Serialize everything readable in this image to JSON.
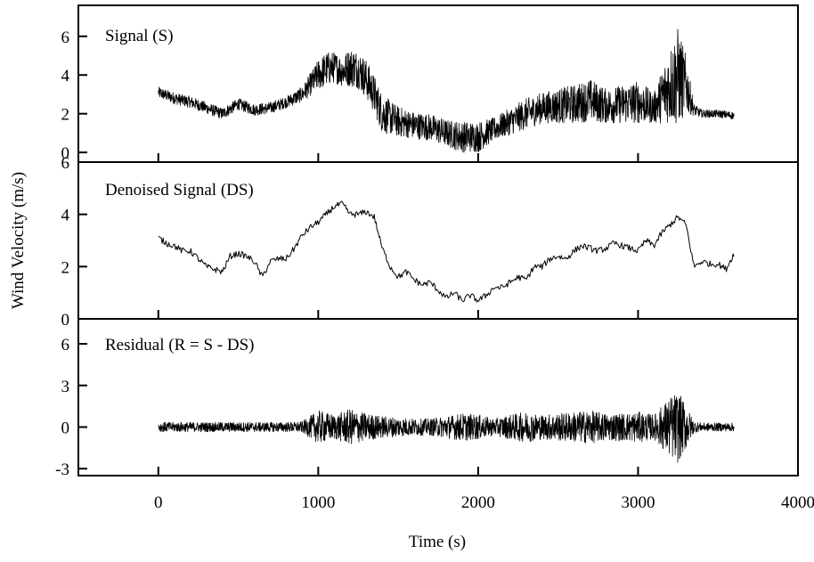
{
  "chart_data": {
    "type": "line",
    "xlabel": "Time (s)",
    "ylabel": "Wind Velocity (m/s)",
    "xlim": [
      -500,
      4000
    ],
    "x_ticks": [
      0,
      1000,
      2000,
      3000,
      4000
    ],
    "grid": false,
    "panels": [
      {
        "label": "Signal (S)",
        "ylim": [
          -0.5,
          7.6
        ],
        "y_ticks": [
          "0",
          "2",
          "4",
          "6"
        ],
        "y_tick_values": [
          0,
          2,
          4,
          6
        ],
        "series": [
          {
            "x": [
              0,
              100,
              200,
              300,
              400,
              500,
              600,
              700,
              800,
              900,
              1000,
              1050,
              1100,
              1150,
              1200,
              1250,
              1300,
              1350,
              1400,
              1500,
              1600,
              1700,
              1800,
              1900,
              2000,
              2100,
              2200,
              2300,
              2400,
              2500,
              2600,
              2700,
              2800,
              2900,
              3000,
              3100,
              3200,
              3250,
              3300,
              3350,
              3400,
              3500,
              3600
            ],
            "y": [
              3.1,
              2.8,
              2.6,
              2.3,
              2.0,
              2.5,
              2.2,
              2.3,
              2.6,
              3.0,
              4.0,
              4.3,
              4.4,
              4.2,
              4.4,
              4.3,
              3.8,
              3.0,
              2.0,
              1.6,
              1.4,
              1.3,
              1.0,
              0.8,
              0.8,
              1.2,
              1.6,
              2.0,
              2.3,
              2.4,
              2.5,
              2.7,
              2.4,
              2.5,
              2.6,
              2.3,
              3.5,
              3.9,
              3.5,
              2.2,
              2.0,
              2.0,
              1.9
            ],
            "fluctuation": [
              0.3,
              0.3,
              0.3,
              0.3,
              0.3,
              0.3,
              0.3,
              0.3,
              0.3,
              0.4,
              0.8,
              0.9,
              0.8,
              0.8,
              1.0,
              1.0,
              1.0,
              1.0,
              1.0,
              0.8,
              0.7,
              0.7,
              0.7,
              0.8,
              0.8,
              0.6,
              0.7,
              0.8,
              0.8,
              0.9,
              1.0,
              1.1,
              0.9,
              1.0,
              1.1,
              0.8,
              2.0,
              2.6,
              1.5,
              0.3,
              0.2,
              0.2,
              0.2
            ]
          }
        ]
      },
      {
        "label": "Denoised Signal (DS)",
        "ylim": [
          0,
          6
        ],
        "y_ticks": [
          "0",
          "2",
          "4",
          "6"
        ],
        "y_tick_values": [
          0,
          2,
          4,
          6
        ],
        "series": [
          {
            "x": [
              0,
              50,
              100,
              150,
              200,
              250,
              300,
              350,
              400,
              450,
              500,
              550,
              600,
              650,
              700,
              750,
              800,
              850,
              900,
              950,
              1000,
              1050,
              1100,
              1150,
              1200,
              1250,
              1300,
              1350,
              1400,
              1450,
              1500,
              1550,
              1600,
              1650,
              1700,
              1750,
              1800,
              1850,
              1900,
              1950,
              2000,
              2050,
              2100,
              2150,
              2200,
              2250,
              2300,
              2350,
              2400,
              2450,
              2500,
              2550,
              2600,
              2650,
              2700,
              2750,
              2800,
              2850,
              2900,
              2950,
              3000,
              3050,
              3100,
              3150,
              3200,
              3250,
              3300,
              3350,
              3400,
              3450,
              3500,
              3550,
              3600
            ],
            "y": [
              3.1,
              2.9,
              2.8,
              2.6,
              2.6,
              2.3,
              2.0,
              1.9,
              1.8,
              2.4,
              2.5,
              2.4,
              2.2,
              1.6,
              2.2,
              2.3,
              2.3,
              2.7,
              3.2,
              3.5,
              3.7,
              4.0,
              4.3,
              4.4,
              4.0,
              4.0,
              4.1,
              3.9,
              2.7,
              2.0,
              1.6,
              1.8,
              1.5,
              1.3,
              1.4,
              1.1,
              0.8,
              1.0,
              0.7,
              0.9,
              0.7,
              0.9,
              1.2,
              1.2,
              1.4,
              1.6,
              1.5,
              2.0,
              2.0,
              2.3,
              2.4,
              2.3,
              2.6,
              2.8,
              2.7,
              2.6,
              2.7,
              2.9,
              2.8,
              2.7,
              2.6,
              3.0,
              2.8,
              3.3,
              3.6,
              3.9,
              3.6,
              2.0,
              2.2,
              2.1,
              2.1,
              1.9,
              2.5
            ],
            "fluctuation": 0.12
          }
        ]
      },
      {
        "label": "Residual (R = S - DS)",
        "ylim": [
          -3.5,
          7.8
        ],
        "y_ticks": [
          "-3",
          "0",
          "3",
          "6"
        ],
        "y_tick_values": [
          -3,
          0,
          3,
          6
        ],
        "series": [
          {
            "x": [
              0,
              100,
              200,
              300,
              400,
              500,
              600,
              700,
              800,
              900,
              1000,
              1100,
              1200,
              1300,
              1400,
              1500,
              1600,
              1700,
              1800,
              1900,
              2000,
              2100,
              2200,
              2300,
              2400,
              2500,
              2600,
              2700,
              2800,
              2900,
              3000,
              3100,
              3200,
              3250,
              3300,
              3350,
              3400,
              3500,
              3600
            ],
            "y": [
              0,
              0,
              0,
              0,
              0,
              0,
              0,
              0,
              0,
              0,
              0,
              0,
              0,
              0,
              0,
              0,
              0,
              0,
              0,
              0,
              0,
              0,
              0,
              0,
              0,
              0,
              0,
              0,
              0,
              0,
              0,
              0,
              0,
              0,
              0,
              0,
              0,
              0,
              0
            ],
            "fluctuation": [
              0.35,
              0.35,
              0.35,
              0.35,
              0.35,
              0.35,
              0.35,
              0.35,
              0.35,
              0.4,
              1.2,
              0.9,
              1.3,
              1.0,
              0.8,
              0.7,
              0.6,
              0.6,
              0.8,
              1.0,
              0.9,
              0.6,
              0.9,
              1.1,
              0.9,
              1.0,
              1.1,
              1.2,
              1.0,
              1.0,
              1.1,
              0.9,
              2.2,
              2.6,
              1.6,
              0.4,
              0.3,
              0.3,
              0.3
            ]
          }
        ]
      }
    ]
  }
}
